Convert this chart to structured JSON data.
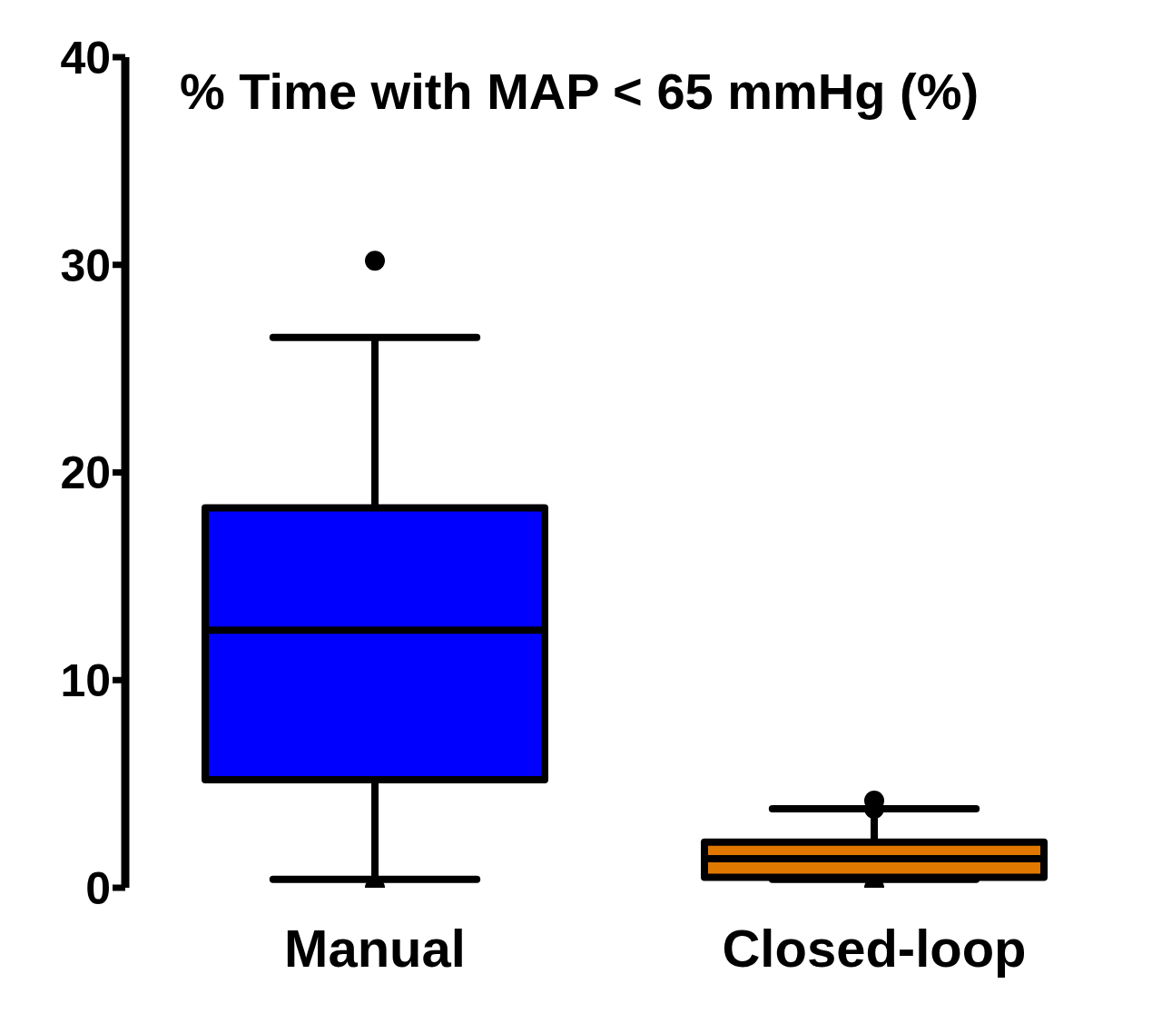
{
  "chart_data": {
    "type": "box",
    "title": "% Time with MAP < 65 mmHg (%)",
    "categories": [
      "Manual",
      "Closed-loop"
    ],
    "colors": [
      "#0000ff",
      "#e07800"
    ],
    "boxes": [
      {
        "low": 0.4,
        "q1": 5.2,
        "median": 12.4,
        "q3": 18.3,
        "high": 26.5,
        "outliers": [
          30.2,
          0
        ]
      },
      {
        "low": 0.4,
        "q1": 0.5,
        "median": 1.4,
        "q3": 2.2,
        "high": 3.8,
        "outliers": [
          4.2,
          3.8,
          0
        ]
      }
    ],
    "ylim": [
      0,
      40
    ],
    "yticks": [
      0,
      10,
      20,
      30,
      40
    ]
  }
}
